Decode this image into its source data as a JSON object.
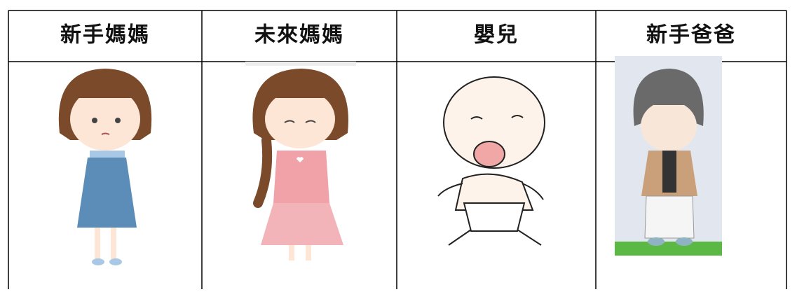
{
  "table": {
    "header": [
      "新手媽媽",
      "未來媽媽",
      "嬰兒",
      "新手爸爸"
    ]
  }
}
